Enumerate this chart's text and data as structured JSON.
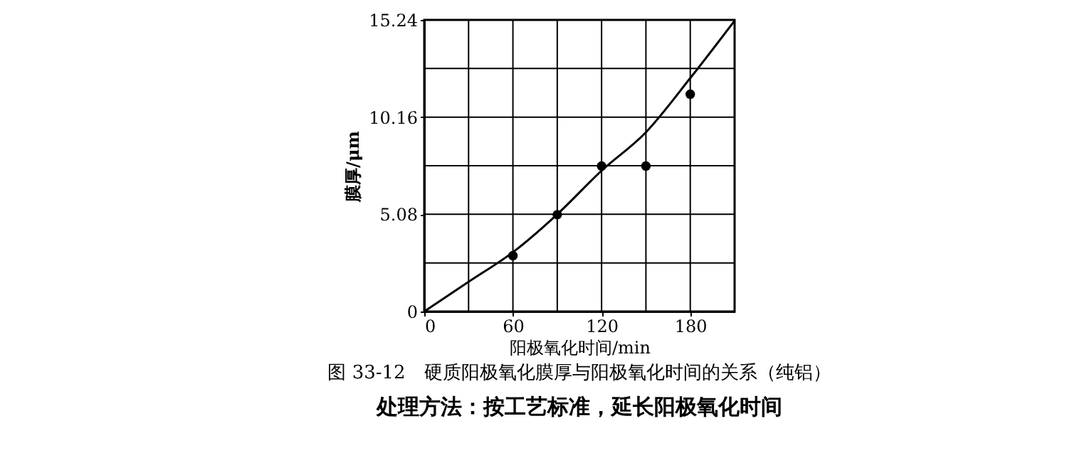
{
  "chart_data": {
    "type": "scatter",
    "xlabel": "阳极氧化时间/min",
    "ylabel": "膜厚/μm",
    "annotations": [
      "图 33-12　硬质阳极氧化膜厚与阳极氧化时间的关系（纯铝）",
      "处理方法：按工艺标准，延长阳极氧化时间"
    ],
    "xlim": [
      0,
      210
    ],
    "ylim": [
      0,
      15.24
    ],
    "xticks": [
      0,
      {
        "value": 30,
        "label": null
      },
      60,
      {
        "value": 90,
        "label": null
      },
      120,
      {
        "value": 150,
        "label": null
      },
      180,
      {
        "value": 210,
        "label": null
      }
    ],
    "yticks": [
      0,
      {
        "value": 2.54,
        "label": null
      },
      5.08,
      {
        "value": 7.62,
        "label": null
      },
      10.16,
      {
        "value": 12.7,
        "label": null
      },
      15.24
    ],
    "grid": true,
    "marker": "circle",
    "series": [
      {
        "color": "#000000",
        "x": [
          60,
          90,
          120,
          150,
          180
        ],
        "values": [
          2.92,
          5.06,
          7.6,
          7.6,
          11.36
        ]
      },
      {
        "type": "line",
        "color": "#000000",
        "marker": "none",
        "line_style": "solid",
        "x": [
          0,
          30,
          60,
          90,
          120,
          150,
          180,
          210
        ],
        "values": [
          0,
          1.55,
          3.1,
          5.08,
          7.36,
          9.37,
          12.2,
          15.2
        ]
      }
    ]
  }
}
